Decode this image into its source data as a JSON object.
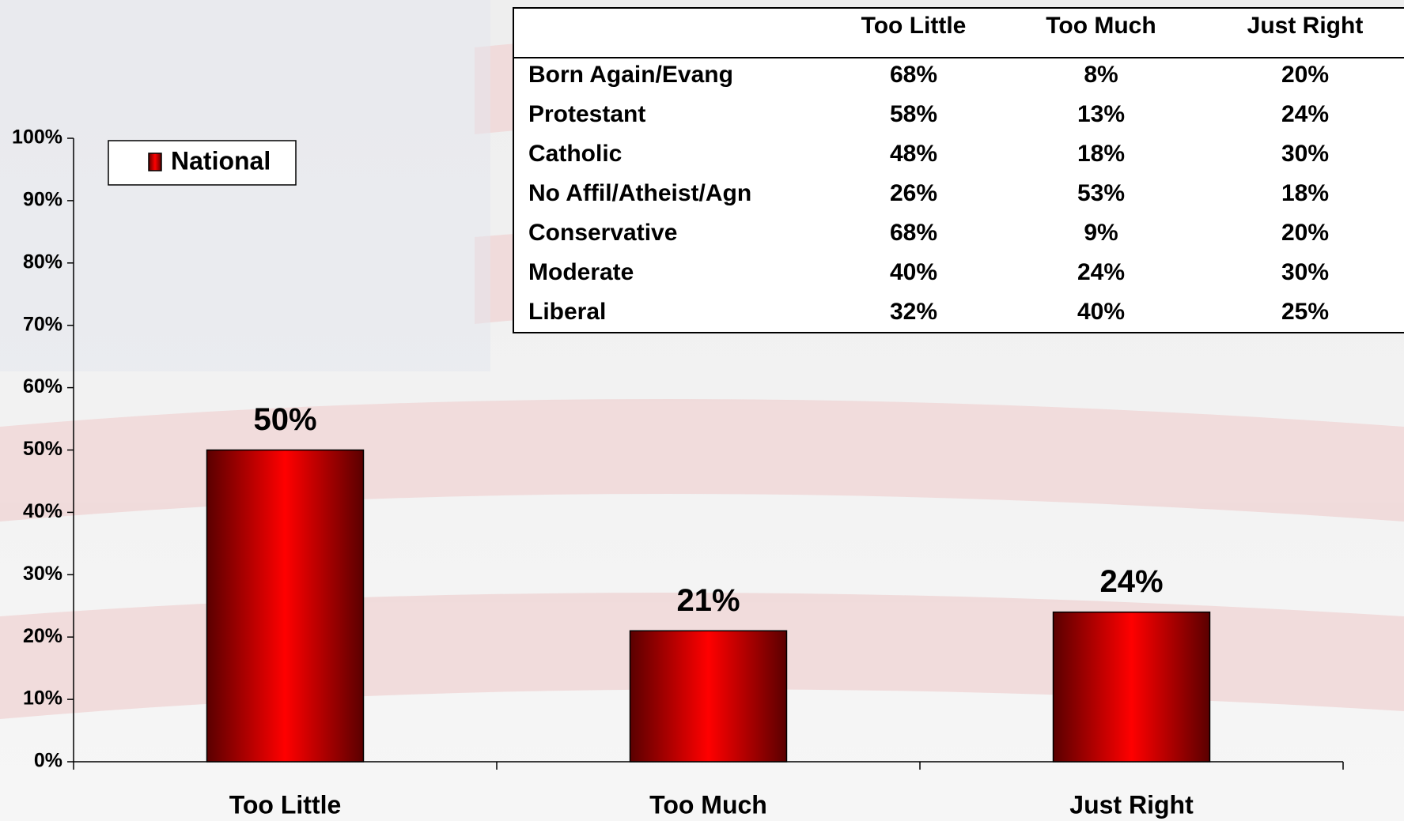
{
  "chart_data": {
    "type": "bar",
    "categories": [
      "Too Little",
      "Too Much",
      "Just Right"
    ],
    "series": [
      {
        "name": "National",
        "color": "#ff0000",
        "values": [
          50,
          21,
          24
        ],
        "value_labels": [
          "50%",
          "21%",
          "24%"
        ]
      }
    ],
    "ylim": [
      0,
      100
    ],
    "yticks": [
      {
        "value": 0,
        "label": "0%"
      },
      {
        "value": 10,
        "label": "10%"
      },
      {
        "value": 20,
        "label": "20%"
      },
      {
        "value": 30,
        "label": "30%"
      },
      {
        "value": 40,
        "label": "40%"
      },
      {
        "value": 50,
        "label": "50%"
      },
      {
        "value": 60,
        "label": "60%"
      },
      {
        "value": 70,
        "label": "70%"
      },
      {
        "value": 80,
        "label": "80%"
      },
      {
        "value": 90,
        "label": "90%"
      },
      {
        "value": 100,
        "label": "100%"
      }
    ],
    "legend": "top-left"
  },
  "table": {
    "columns": [
      "Too Little",
      "Too Much",
      "Just Right"
    ],
    "rows": [
      {
        "label": "Born Again/Evang",
        "values": [
          "68%",
          "8%",
          "20%"
        ]
      },
      {
        "label": "Protestant",
        "values": [
          "58%",
          "13%",
          "24%"
        ]
      },
      {
        "label": "Catholic",
        "values": [
          "48%",
          "18%",
          "30%"
        ]
      },
      {
        "label": "No Affil/Atheist/Agn",
        "values": [
          "26%",
          "53%",
          "18%"
        ]
      },
      {
        "label": "Conservative",
        "values": [
          "68%",
          "9%",
          "20%"
        ]
      },
      {
        "label": "Moderate",
        "values": [
          "40%",
          "24%",
          "30%"
        ]
      },
      {
        "label": "Liberal",
        "values": [
          "32%",
          "40%",
          "25%"
        ]
      }
    ]
  }
}
